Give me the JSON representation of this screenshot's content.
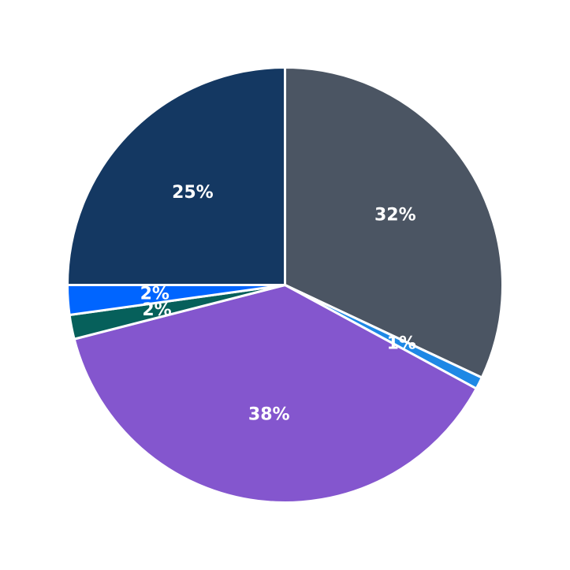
{
  "chart_data": {
    "type": "pie",
    "start_angle_deg": 90,
    "direction": "clockwise",
    "slice_border_color": "#ffffff",
    "slices": [
      {
        "label": "32%",
        "value": 32.0,
        "color": "#4b5563"
      },
      {
        "label": "1%",
        "value": 0.9,
        "color": "#1e88e5"
      },
      {
        "label": "38%",
        "value": 38.1,
        "color": "#8456ce"
      },
      {
        "label": "2%",
        "value": 1.8,
        "color": "#06605b"
      },
      {
        "label": "2%",
        "value": 2.2,
        "color": "#0065ff"
      },
      {
        "label": "25%",
        "value": 25.0,
        "color": "#143862"
      }
    ]
  }
}
